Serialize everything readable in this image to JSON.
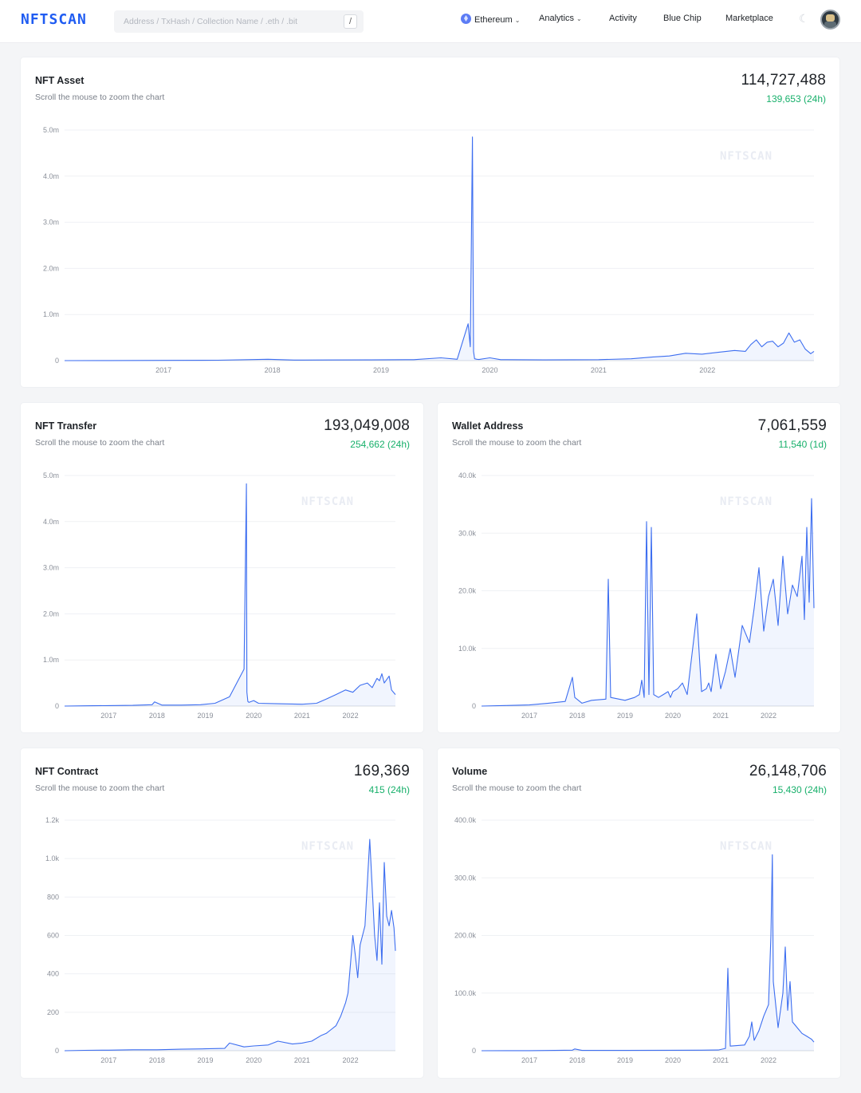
{
  "header": {
    "logo": "NFTSCAN",
    "search_placeholder": "Address / TxHash / Collection Name / .eth / .bit",
    "search_shortcut": "/",
    "nav": [
      {
        "label": "Ethereum",
        "dropdown": true,
        "icon": "ethereum-icon"
      },
      {
        "label": "Analytics",
        "dropdown": true
      },
      {
        "label": "Activity",
        "dropdown": false
      },
      {
        "label": "Blue Chip",
        "dropdown": false
      },
      {
        "label": "Marketplace",
        "dropdown": false
      }
    ],
    "theme_icon": "moon-icon",
    "avatar_icon": "avatar"
  },
  "colors": {
    "line": "#3d6ef0",
    "positive": "#18b06b",
    "accent": "#1f5cf2"
  },
  "watermark": "NFTSCAN",
  "cards": [
    {
      "title": "NFT Asset",
      "subtitle": "Scroll the mouse to zoom the chart",
      "total": "114,727,488",
      "delta": "139,653 (24h)"
    },
    {
      "title": "NFT Transfer",
      "subtitle": "Scroll the mouse to zoom the chart",
      "total": "193,049,008",
      "delta": "254,662 (24h)"
    },
    {
      "title": "Wallet Address",
      "subtitle": "Scroll the mouse to zoom the chart",
      "total": "7,061,559",
      "delta": "11,540 (1d)"
    },
    {
      "title": "NFT Contract",
      "subtitle": "Scroll the mouse to zoom the chart",
      "total": "169,369",
      "delta": "415 (24h)"
    },
    {
      "title": "Volume",
      "subtitle": "Scroll the mouse to zoom the chart",
      "total": "26,148,706",
      "delta": "15,430 (24h)"
    }
  ],
  "chart_data": [
    {
      "type": "line",
      "title": "NFT Asset",
      "y_ticks": [
        "0",
        "1.0m",
        "2.0m",
        "3.0m",
        "4.0m",
        "5.0m"
      ],
      "ylim": [
        0,
        5000000
      ],
      "x_ticks": [
        "2017",
        "2018",
        "2019",
        "2020",
        "2021",
        "2022"
      ],
      "xlim": [
        2016.09,
        2022.98
      ],
      "series": [
        {
          "name": "NFT Asset",
          "x": [
            2016.09,
            2016.5,
            2017.0,
            2017.5,
            2017.96,
            2018.2,
            2018.5,
            2018.9,
            2019.3,
            2019.55,
            2019.7,
            2019.8,
            2019.82,
            2019.84,
            2019.85,
            2019.86,
            2019.88,
            2019.9,
            2020.0,
            2020.1,
            2020.5,
            2021.0,
            2021.3,
            2021.5,
            2021.65,
            2021.8,
            2021.95,
            2022.1,
            2022.25,
            2022.35,
            2022.4,
            2022.45,
            2022.5,
            2022.55,
            2022.6,
            2022.65,
            2022.7,
            2022.75,
            2022.8,
            2022.85,
            2022.9,
            2022.95,
            2022.98
          ],
          "values": [
            0,
            2000,
            5000,
            8000,
            30000,
            12000,
            14000,
            15000,
            20000,
            60000,
            30000,
            800000,
            300000,
            4850000,
            200000,
            40000,
            30000,
            25000,
            60000,
            20000,
            15000,
            20000,
            40000,
            80000,
            100000,
            160000,
            140000,
            180000,
            220000,
            200000,
            350000,
            450000,
            300000,
            400000,
            420000,
            300000,
            380000,
            600000,
            400000,
            450000,
            250000,
            150000,
            200000
          ]
        }
      ]
    },
    {
      "type": "line",
      "title": "NFT Transfer",
      "y_ticks": [
        "0",
        "1.0m",
        "2.0m",
        "3.0m",
        "4.0m",
        "5.0m"
      ],
      "ylim": [
        0,
        5000000
      ],
      "x_ticks": [
        "2017",
        "2018",
        "2019",
        "2020",
        "2021",
        "2022"
      ],
      "xlim": [
        2016.09,
        2022.93
      ],
      "series": [
        {
          "name": "NFT Transfer",
          "x": [
            2016.09,
            2016.5,
            2017.0,
            2017.5,
            2017.9,
            2017.95,
            2018.1,
            2018.5,
            2018.9,
            2019.2,
            2019.5,
            2019.8,
            2019.85,
            2019.86,
            2019.88,
            2019.9,
            2020.0,
            2020.1,
            2020.5,
            2021.0,
            2021.3,
            2021.5,
            2021.7,
            2021.9,
            2022.05,
            2022.2,
            2022.35,
            2022.45,
            2022.55,
            2022.6,
            2022.65,
            2022.7,
            2022.8,
            2022.85,
            2022.93
          ],
          "values": [
            0,
            5000,
            10000,
            15000,
            30000,
            90000,
            20000,
            20000,
            30000,
            60000,
            200000,
            800000,
            4820000,
            300000,
            100000,
            80000,
            120000,
            60000,
            50000,
            40000,
            60000,
            150000,
            250000,
            350000,
            300000,
            450000,
            500000,
            400000,
            600000,
            550000,
            700000,
            500000,
            650000,
            350000,
            250000
          ]
        }
      ]
    },
    {
      "type": "line",
      "title": "Wallet Address",
      "y_ticks": [
        "0",
        "10.0k",
        "20.0k",
        "30.0k",
        "40.0k"
      ],
      "ylim": [
        0,
        40000
      ],
      "x_ticks": [
        "2017",
        "2018",
        "2019",
        "2020",
        "2021",
        "2022"
      ],
      "xlim": [
        2016.0,
        2022.95
      ],
      "series": [
        {
          "name": "Wallet Address",
          "x": [
            2016.0,
            2016.5,
            2017.0,
            2017.4,
            2017.75,
            2017.9,
            2017.95,
            2018.1,
            2018.3,
            2018.6,
            2018.65,
            2018.7,
            2019.0,
            2019.2,
            2019.3,
            2019.35,
            2019.4,
            2019.45,
            2019.5,
            2019.55,
            2019.6,
            2019.7,
            2019.8,
            2019.9,
            2019.95,
            2020.0,
            2020.1,
            2020.2,
            2020.3,
            2020.5,
            2020.6,
            2020.7,
            2020.75,
            2020.8,
            2020.9,
            2021.0,
            2021.1,
            2021.2,
            2021.3,
            2021.35,
            2021.45,
            2021.6,
            2021.7,
            2021.8,
            2021.9,
            2022.0,
            2022.1,
            2022.2,
            2022.3,
            2022.4,
            2022.5,
            2022.6,
            2022.7,
            2022.75,
            2022.8,
            2022.85,
            2022.9,
            2022.95
          ],
          "values": [
            0,
            100,
            200,
            500,
            800,
            5000,
            1500,
            500,
            1000,
            1200,
            22000,
            1500,
            1000,
            1500,
            2000,
            4500,
            1500,
            32000,
            2000,
            31000,
            2000,
            1500,
            2000,
            2500,
            1500,
            2500,
            3000,
            4000,
            2000,
            16000,
            2500,
            3000,
            4000,
            2500,
            9000,
            3000,
            6000,
            10000,
            5000,
            8000,
            14000,
            11000,
            17000,
            24000,
            13000,
            19000,
            22000,
            14000,
            26000,
            16000,
            21000,
            19000,
            26000,
            15000,
            31000,
            18000,
            36000,
            17000
          ]
        }
      ]
    },
    {
      "type": "line",
      "title": "NFT Contract",
      "y_ticks": [
        "0",
        "200",
        "400",
        "600",
        "800",
        "1.0k",
        "1.2k"
      ],
      "ylim": [
        0,
        1200
      ],
      "x_ticks": [
        "2017",
        "2018",
        "2019",
        "2020",
        "2021",
        "2022"
      ],
      "xlim": [
        2016.09,
        2022.93
      ],
      "series": [
        {
          "name": "NFT Contract",
          "x": [
            2016.09,
            2016.5,
            2017.0,
            2017.5,
            2018.0,
            2018.5,
            2019.0,
            2019.4,
            2019.5,
            2019.8,
            2020.0,
            2020.3,
            2020.5,
            2020.8,
            2021.0,
            2021.2,
            2021.4,
            2021.5,
            2021.6,
            2021.7,
            2021.8,
            2021.9,
            2021.95,
            2022.0,
            2022.05,
            2022.1,
            2022.15,
            2022.2,
            2022.3,
            2022.4,
            2022.5,
            2022.55,
            2022.6,
            2022.65,
            2022.7,
            2022.75,
            2022.8,
            2022.85,
            2022.9,
            2022.93
          ],
          "values": [
            0,
            2,
            3,
            5,
            5,
            8,
            10,
            12,
            40,
            20,
            25,
            30,
            50,
            35,
            40,
            50,
            80,
            90,
            110,
            130,
            180,
            250,
            300,
            450,
            600,
            500,
            380,
            550,
            650,
            1100,
            600,
            470,
            770,
            450,
            980,
            700,
            650,
            730,
            640,
            520
          ]
        }
      ]
    },
    {
      "type": "line",
      "title": "Volume",
      "y_ticks": [
        "0",
        "100.0k",
        "200.0k",
        "300.0k",
        "400.0k"
      ],
      "ylim": [
        0,
        400000
      ],
      "x_ticks": [
        "2017",
        "2018",
        "2019",
        "2020",
        "2021",
        "2022"
      ],
      "xlim": [
        2016.0,
        2022.95
      ],
      "series": [
        {
          "name": "Volume",
          "x": [
            2016.0,
            2017.0,
            2017.9,
            2017.95,
            2018.1,
            2019.0,
            2020.0,
            2020.6,
            2020.95,
            2021.1,
            2021.15,
            2021.2,
            2021.5,
            2021.6,
            2021.65,
            2021.7,
            2021.8,
            2021.9,
            2022.0,
            2022.05,
            2022.08,
            2022.1,
            2022.15,
            2022.2,
            2022.3,
            2022.35,
            2022.4,
            2022.45,
            2022.5,
            2022.6,
            2022.7,
            2022.8,
            2022.9,
            2022.95
          ],
          "values": [
            0,
            200,
            1000,
            3000,
            500,
            500,
            800,
            1000,
            1200,
            4000,
            143000,
            8000,
            10000,
            25000,
            50000,
            18000,
            35000,
            60000,
            80000,
            200000,
            340000,
            120000,
            80000,
            40000,
            100000,
            180000,
            70000,
            120000,
            50000,
            40000,
            30000,
            25000,
            20000,
            15000
          ]
        }
      ]
    }
  ]
}
